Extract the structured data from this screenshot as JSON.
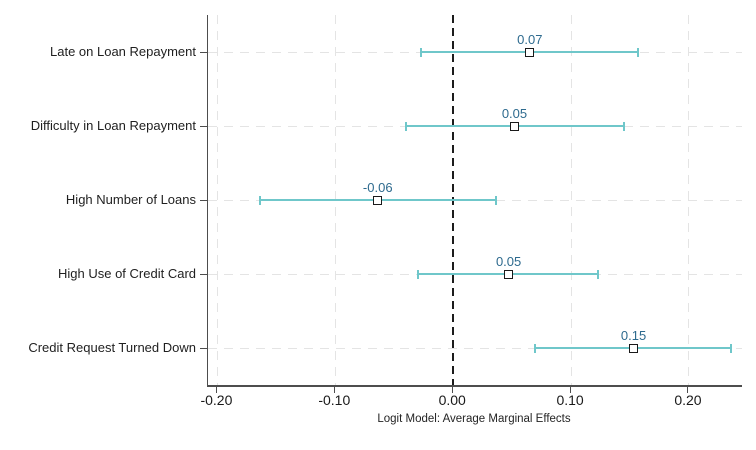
{
  "chart_data": {
    "type": "scatter",
    "variant": "coefficient-plot",
    "title": "",
    "xlabel": "Logit Model: Average Marginal Effects",
    "ylabel": "",
    "xlim": [
      -0.208,
      0.245
    ],
    "grid": true,
    "zero_reference_line": 0.0,
    "x_ticks": [
      {
        "value": -0.2,
        "label": "-0.20"
      },
      {
        "value": -0.1,
        "label": "-0.10"
      },
      {
        "value": 0.0,
        "label": "0.00"
      },
      {
        "value": 0.1,
        "label": "0.10"
      },
      {
        "value": 0.2,
        "label": "0.20"
      }
    ],
    "series": [
      {
        "category": "Late on Loan Repayment",
        "estimate": 0.065,
        "estimate_label": "0.07",
        "ci_low": -0.027,
        "ci_high": 0.157
      },
      {
        "category": "Difficulty in Loan Repayment",
        "estimate": 0.052,
        "estimate_label": "0.05",
        "ci_low": -0.04,
        "ci_high": 0.145
      },
      {
        "category": "High Number of Loans",
        "estimate": -0.064,
        "estimate_label": "-0.06",
        "ci_low": -0.164,
        "ci_high": 0.036
      },
      {
        "category": "High Use of Credit Card",
        "estimate": 0.047,
        "estimate_label": "0.05",
        "ci_low": -0.03,
        "ci_high": 0.123
      },
      {
        "category": "Credit Request Turned Down",
        "estimate": 0.153,
        "estimate_label": "0.15",
        "ci_low": 0.069,
        "ci_high": 0.236
      }
    ]
  },
  "colors": {
    "ci_line": "#6fc7ca",
    "estimate_text": "#2d6a8e",
    "axis": "#4d4d4d",
    "gridline": "#e4e4e4",
    "zero_line": "#1c1c1c",
    "marker_fill": "#ffffff",
    "marker_border": "#1a1a1a",
    "background": "#ffffff"
  }
}
